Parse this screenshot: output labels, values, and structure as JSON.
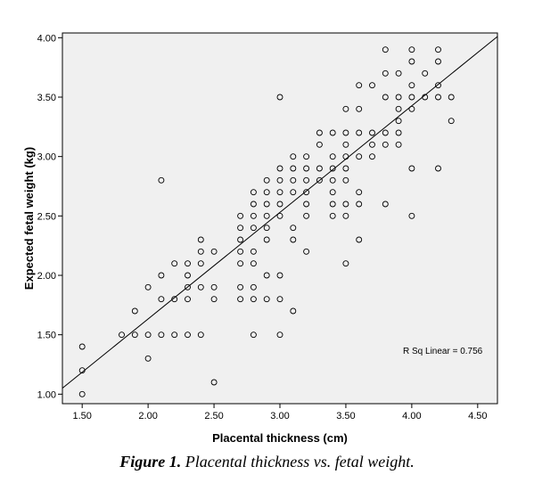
{
  "caption": {
    "label": "Figure 1.",
    "text": "Placental thickness vs. fetal weight."
  },
  "chart_data": {
    "type": "scatter",
    "xlabel": "Placental thickness (cm)",
    "ylabel": "Expected fetal weight (kg)",
    "xlim": [
      1.35,
      4.65
    ],
    "ylim": [
      0.92,
      4.04
    ],
    "xticks": [
      "1.50",
      "2.00",
      "2.50",
      "3.00",
      "3.50",
      "4.00",
      "4.50"
    ],
    "yticks": [
      "1.00",
      "1.50",
      "2.00",
      "2.50",
      "3.00",
      "3.50",
      "4.00"
    ],
    "grid": false,
    "background": "#f0f0f0",
    "annotation": "R Sq Linear = 0.756",
    "fit_line": {
      "x": [
        1.35,
        4.65
      ],
      "y": [
        1.05,
        4.01
      ]
    },
    "points": [
      [
        1.5,
        1.4
      ],
      [
        1.5,
        1.2
      ],
      [
        1.5,
        1.0
      ],
      [
        1.8,
        1.5
      ],
      [
        1.9,
        1.5
      ],
      [
        1.9,
        1.7
      ],
      [
        2.0,
        1.5
      ],
      [
        2.0,
        1.3
      ],
      [
        2.0,
        1.9
      ],
      [
        2.1,
        1.5
      ],
      [
        2.1,
        1.8
      ],
      [
        2.1,
        2.0
      ],
      [
        2.1,
        2.8
      ],
      [
        2.2,
        1.5
      ],
      [
        2.2,
        1.8
      ],
      [
        2.2,
        2.1
      ],
      [
        2.3,
        1.5
      ],
      [
        2.3,
        1.8
      ],
      [
        2.3,
        1.9
      ],
      [
        2.3,
        2.0
      ],
      [
        2.3,
        2.1
      ],
      [
        2.4,
        1.5
      ],
      [
        2.4,
        1.9
      ],
      [
        2.4,
        2.1
      ],
      [
        2.4,
        2.2
      ],
      [
        2.4,
        2.3
      ],
      [
        2.5,
        1.1
      ],
      [
        2.5,
        1.8
      ],
      [
        2.5,
        1.9
      ],
      [
        2.5,
        2.2
      ],
      [
        2.7,
        1.8
      ],
      [
        2.7,
        1.9
      ],
      [
        2.7,
        2.1
      ],
      [
        2.7,
        2.2
      ],
      [
        2.7,
        2.3
      ],
      [
        2.7,
        2.4
      ],
      [
        2.7,
        2.5
      ],
      [
        2.8,
        1.5
      ],
      [
        2.8,
        1.8
      ],
      [
        2.8,
        1.9
      ],
      [
        2.8,
        2.1
      ],
      [
        2.8,
        2.2
      ],
      [
        2.8,
        2.4
      ],
      [
        2.8,
        2.5
      ],
      [
        2.8,
        2.6
      ],
      [
        2.8,
        2.7
      ],
      [
        2.9,
        1.8
      ],
      [
        2.9,
        2.0
      ],
      [
        2.9,
        2.3
      ],
      [
        2.9,
        2.4
      ],
      [
        2.9,
        2.5
      ],
      [
        2.9,
        2.6
      ],
      [
        2.9,
        2.7
      ],
      [
        2.9,
        2.8
      ],
      [
        3.0,
        1.5
      ],
      [
        3.0,
        1.8
      ],
      [
        3.0,
        2.0
      ],
      [
        3.0,
        2.5
      ],
      [
        3.0,
        2.6
      ],
      [
        3.0,
        2.7
      ],
      [
        3.0,
        2.8
      ],
      [
        3.0,
        2.9
      ],
      [
        3.0,
        3.5
      ],
      [
        3.1,
        1.7
      ],
      [
        3.1,
        2.3
      ],
      [
        3.1,
        2.4
      ],
      [
        3.1,
        2.7
      ],
      [
        3.1,
        2.8
      ],
      [
        3.1,
        2.9
      ],
      [
        3.1,
        3.0
      ],
      [
        3.2,
        2.2
      ],
      [
        3.2,
        2.5
      ],
      [
        3.2,
        2.6
      ],
      [
        3.2,
        2.7
      ],
      [
        3.2,
        2.8
      ],
      [
        3.2,
        2.9
      ],
      [
        3.2,
        3.0
      ],
      [
        3.3,
        2.8
      ],
      [
        3.3,
        2.9
      ],
      [
        3.3,
        3.1
      ],
      [
        3.3,
        3.2
      ],
      [
        3.4,
        2.5
      ],
      [
        3.4,
        2.6
      ],
      [
        3.4,
        2.7
      ],
      [
        3.4,
        2.8
      ],
      [
        3.4,
        2.9
      ],
      [
        3.4,
        3.0
      ],
      [
        3.4,
        3.2
      ],
      [
        3.5,
        2.1
      ],
      [
        3.5,
        2.5
      ],
      [
        3.5,
        2.6
      ],
      [
        3.5,
        2.8
      ],
      [
        3.5,
        2.9
      ],
      [
        3.5,
        3.0
      ],
      [
        3.5,
        3.1
      ],
      [
        3.5,
        3.2
      ],
      [
        3.5,
        3.4
      ],
      [
        3.6,
        2.3
      ],
      [
        3.6,
        2.6
      ],
      [
        3.6,
        2.7
      ],
      [
        3.6,
        3.0
      ],
      [
        3.6,
        3.2
      ],
      [
        3.6,
        3.4
      ],
      [
        3.6,
        3.6
      ],
      [
        3.7,
        3.0
      ],
      [
        3.7,
        3.1
      ],
      [
        3.7,
        3.2
      ],
      [
        3.7,
        3.6
      ],
      [
        3.8,
        2.6
      ],
      [
        3.8,
        3.1
      ],
      [
        3.8,
        3.2
      ],
      [
        3.8,
        3.5
      ],
      [
        3.8,
        3.7
      ],
      [
        3.8,
        3.9
      ],
      [
        3.9,
        3.1
      ],
      [
        3.9,
        3.2
      ],
      [
        3.9,
        3.3
      ],
      [
        3.9,
        3.4
      ],
      [
        3.9,
        3.5
      ],
      [
        3.9,
        3.7
      ],
      [
        4.0,
        2.5
      ],
      [
        4.0,
        2.9
      ],
      [
        4.0,
        3.4
      ],
      [
        4.0,
        3.5
      ],
      [
        4.0,
        3.6
      ],
      [
        4.0,
        3.8
      ],
      [
        4.0,
        3.9
      ],
      [
        4.1,
        3.5
      ],
      [
        4.1,
        3.7
      ],
      [
        4.2,
        2.9
      ],
      [
        4.2,
        3.5
      ],
      [
        4.2,
        3.6
      ],
      [
        4.2,
        3.8
      ],
      [
        4.2,
        3.9
      ],
      [
        4.3,
        3.3
      ],
      [
        4.3,
        3.5
      ]
    ]
  }
}
